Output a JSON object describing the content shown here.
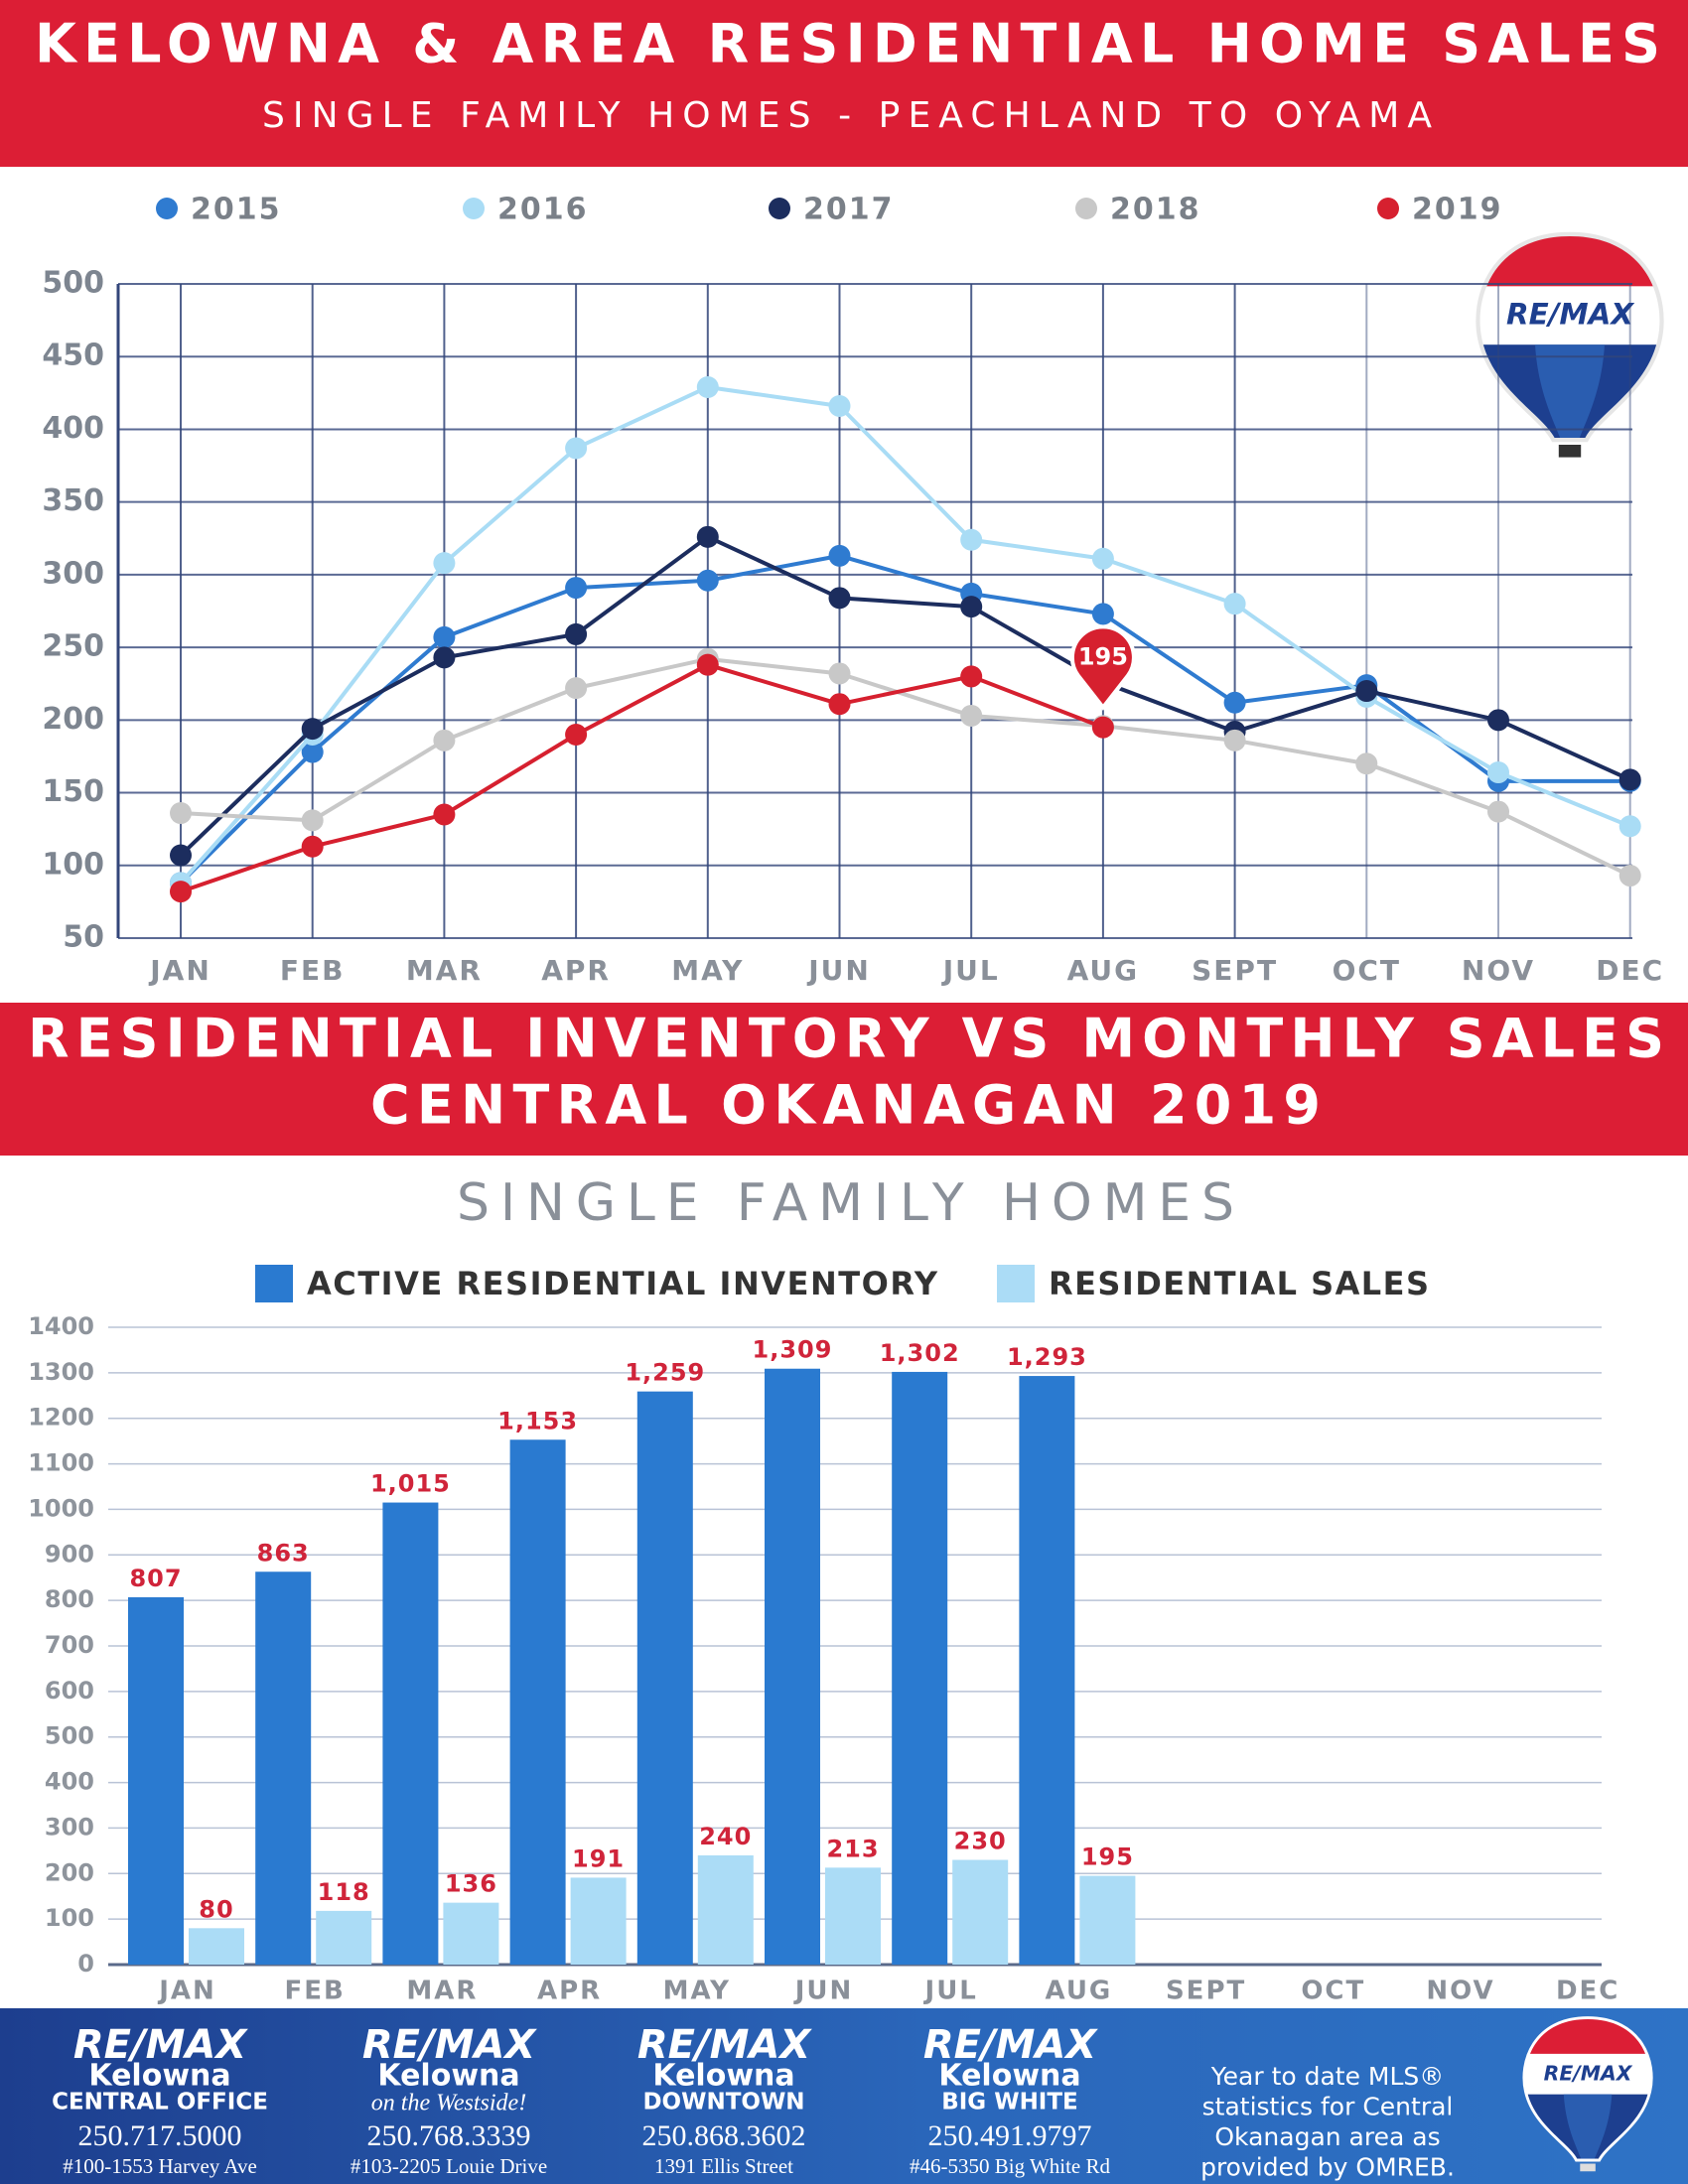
{
  "chart_data": [
    {
      "type": "line",
      "title": "KELOWNA & AREA RESIDENTIAL HOME SALES",
      "subtitle": "SINGLE FAMILY HOMES - PEACHLAND TO OYAMA",
      "categories": [
        "JAN",
        "FEB",
        "MAR",
        "APR",
        "MAY",
        "JUN",
        "JUL",
        "AUG",
        "SEPT",
        "OCT",
        "NOV",
        "DEC"
      ],
      "series": [
        {
          "name": "2015",
          "color": "#2f7bd0",
          "values": [
            88,
            178,
            257,
            291,
            296,
            313,
            287,
            273,
            212,
            224,
            158,
            158
          ]
        },
        {
          "name": "2016",
          "color": "#a9dcf5",
          "values": [
            88,
            190,
            308,
            387,
            429,
            416,
            324,
            311,
            280,
            216,
            164,
            127
          ]
        },
        {
          "name": "2017",
          "color": "#1c2d5e",
          "values": [
            107,
            194,
            243,
            259,
            326,
            284,
            278,
            226,
            192,
            220,
            200,
            159
          ]
        },
        {
          "name": "2018",
          "color": "#c8c8c8",
          "values": [
            136,
            131,
            186,
            222,
            242,
            232,
            203,
            196,
            186,
            170,
            137,
            93
          ]
        },
        {
          "name": "2019",
          "color": "#d6202f",
          "values": [
            82,
            113,
            135,
            190,
            238,
            211,
            230,
            195,
            null,
            null,
            null,
            null
          ],
          "value_labels": [
            null,
            null,
            null,
            null,
            null,
            null,
            null,
            "195",
            null,
            null,
            null,
            null
          ]
        }
      ],
      "ylim": [
        50,
        500
      ],
      "yticks": [
        50,
        100,
        150,
        200,
        250,
        300,
        350,
        400,
        450,
        500
      ],
      "grid": true,
      "legend": "top"
    },
    {
      "type": "bar",
      "title": "RESIDENTIAL INVENTORY VS MONTHLY SALES",
      "subtitle": "CENTRAL OKANAGAN 2019",
      "heading": "SINGLE FAMILY HOMES",
      "categories": [
        "JAN",
        "FEB",
        "MAR",
        "APR",
        "MAY",
        "JUN",
        "JUL",
        "AUG",
        "SEPT",
        "OCT",
        "NOV",
        "DEC"
      ],
      "series": [
        {
          "name": "ACTIVE RESIDENTIAL INVENTORY",
          "color": "#2a7ad0",
          "values": [
            807,
            863,
            1015,
            1153,
            1259,
            1309,
            1302,
            1293,
            null,
            null,
            null,
            null
          ],
          "value_labels": [
            "807",
            "863",
            "1,015",
            "1,153",
            "1,259",
            "1,309",
            "1,302",
            "1,293",
            null,
            null,
            null,
            null
          ]
        },
        {
          "name": "RESIDENTIAL SALES",
          "color": "#abdcf6",
          "values": [
            80,
            118,
            136,
            191,
            240,
            213,
            230,
            195,
            null,
            null,
            null,
            null
          ]
        }
      ],
      "ylim": [
        0,
        1400
      ],
      "yticks": [
        0,
        100,
        200,
        300,
        400,
        500,
        600,
        700,
        800,
        900,
        1000,
        1100,
        1200,
        1300,
        1400
      ],
      "grid": true,
      "legend": "top"
    }
  ],
  "logo": "RE/MAX",
  "footer": {
    "offices": [
      {
        "brand": "RE/MAX",
        "city": "Kelowna",
        "branch": "CENTRAL OFFICE",
        "phone": "250.717.5000",
        "address": "#100-1553 Harvey Ave"
      },
      {
        "brand": "RE/MAX",
        "city": "Kelowna",
        "branch": "on the Westside!",
        "phone": "250.768.3339",
        "address": "#103-2205 Louie Drive"
      },
      {
        "brand": "RE/MAX",
        "city": "Kelowna",
        "branch": "DOWNTOWN",
        "phone": "250.868.3602",
        "address": "1391 Ellis Street"
      },
      {
        "brand": "RE/MAX",
        "city": "Kelowna",
        "branch": "BIG WHITE",
        "phone": "250.491.9797",
        "address": "#46-5350 Big White Rd"
      }
    ],
    "note": [
      "Year to date MLS®",
      "statistics for Central",
      "Okanagan area as",
      "provided by OMREB."
    ]
  }
}
